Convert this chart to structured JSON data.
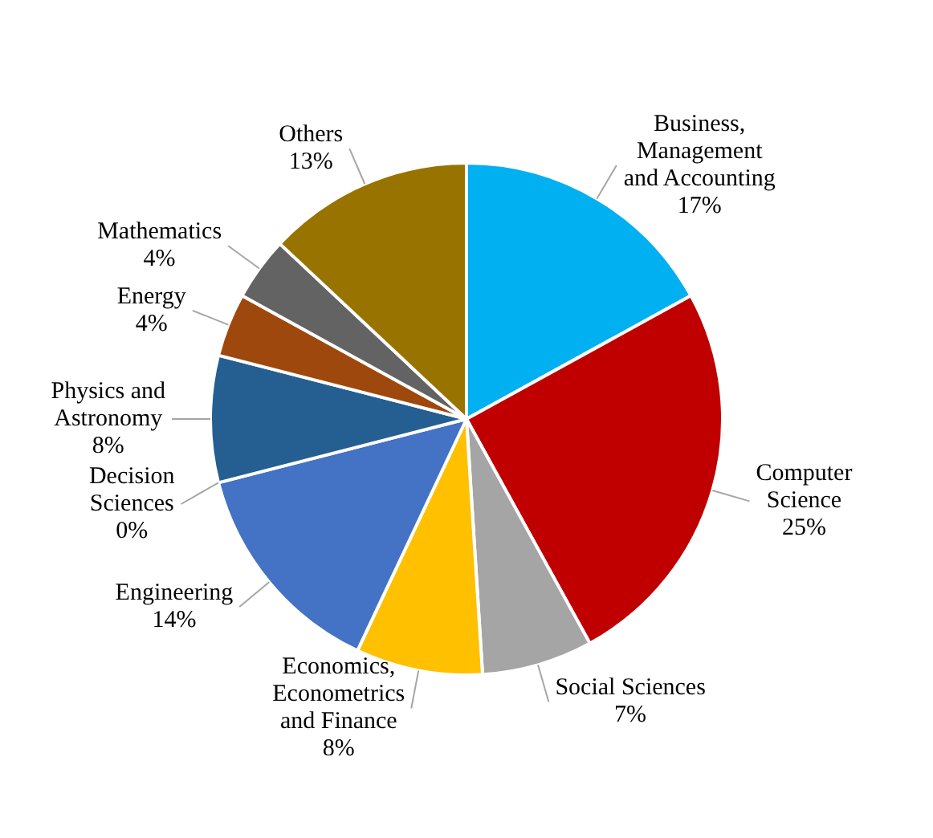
{
  "chart_data": {
    "type": "pie",
    "categories": [
      "Business, Management and Accounting",
      "Computer Science",
      "Social Sciences",
      "Economics, Econometrics and Finance",
      "Engineering",
      "Decision Sciences",
      "Physics and Astronomy",
      "Energy",
      "Mathematics",
      "Others"
    ],
    "values": [
      17,
      25,
      7,
      8,
      14,
      0,
      8,
      4,
      4,
      13
    ],
    "value_labels": [
      "17%",
      "25%",
      "7%",
      "8%",
      "14%",
      "0%",
      "8%",
      "4%",
      "4%",
      "13%"
    ],
    "colors": [
      "#00b0f0",
      "#c00000",
      "#a5a5a5",
      "#ffc000",
      "#4472c4",
      "#70ad47",
      "#255e91",
      "#9e480e",
      "#636363",
      "#997300"
    ]
  }
}
